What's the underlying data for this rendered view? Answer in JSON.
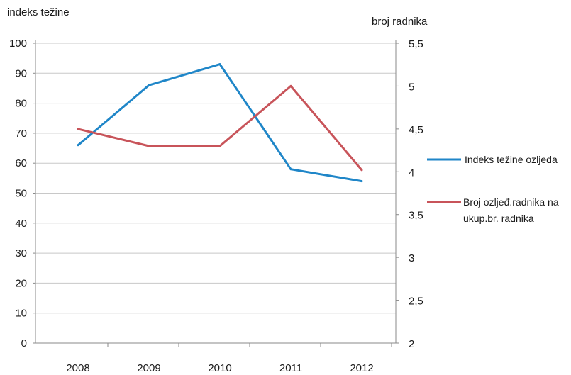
{
  "chart_data": {
    "type": "line",
    "categories": [
      "2008",
      "2009",
      "2010",
      "2011",
      "2012"
    ],
    "y_left_label": "indeks težine",
    "y_right_label": "broj radnika",
    "y_left_range": [
      0,
      100
    ],
    "y_left_ticks": [
      "0",
      "10",
      "20",
      "30",
      "40",
      "50",
      "60",
      "70",
      "80",
      "90",
      "100"
    ],
    "y_right_range": [
      2,
      5.5
    ],
    "y_right_ticks": [
      "2",
      "2,5",
      "3",
      "3,5",
      "4",
      "4,5",
      "5",
      "5,5"
    ],
    "grid": true,
    "legend_position": "right",
    "series": [
      {
        "name": "Indeks težine ozljeda",
        "axis": "left",
        "color": "#1f86c8",
        "values": [
          66,
          86,
          93,
          58,
          54
        ]
      },
      {
        "name_lines": [
          "Broj ozljeđ.radnika na",
          "ukup.br. radnika"
        ],
        "axis": "right",
        "color": "#c8545a",
        "values": [
          4.5,
          4.3,
          4.3,
          5.0,
          4.02
        ]
      }
    ]
  }
}
